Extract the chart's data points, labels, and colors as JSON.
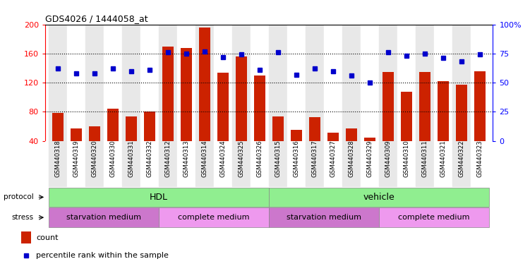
{
  "title": "GDS4026 / 1444058_at",
  "samples": [
    "GSM440318",
    "GSM440319",
    "GSM440320",
    "GSM440330",
    "GSM440331",
    "GSM440332",
    "GSM440312",
    "GSM440313",
    "GSM440314",
    "GSM440324",
    "GSM440325",
    "GSM440326",
    "GSM440315",
    "GSM440316",
    "GSM440317",
    "GSM440327",
    "GSM440328",
    "GSM440329",
    "GSM440309",
    "GSM440310",
    "GSM440311",
    "GSM440321",
    "GSM440322",
    "GSM440323"
  ],
  "counts": [
    78,
    57,
    60,
    84,
    74,
    80,
    170,
    168,
    196,
    134,
    156,
    130,
    74,
    55,
    73,
    51,
    57,
    45,
    135,
    108,
    135,
    122,
    117,
    136
  ],
  "percentiles": [
    62,
    58,
    58,
    62,
    60,
    61,
    76,
    75,
    77,
    72,
    74,
    61,
    76,
    57,
    62,
    60,
    56,
    50,
    76,
    73,
    75,
    71,
    68,
    74
  ],
  "protocol_groups": [
    {
      "label": "HDL",
      "start": 0,
      "end": 11,
      "color": "#90EE90"
    },
    {
      "label": "vehicle",
      "start": 12,
      "end": 23,
      "color": "#90EE90"
    }
  ],
  "stress_groups": [
    {
      "label": "starvation medium",
      "start": 0,
      "end": 5,
      "color": "#CC77CC"
    },
    {
      "label": "complete medium",
      "start": 6,
      "end": 11,
      "color": "#EE99EE"
    },
    {
      "label": "starvation medium",
      "start": 12,
      "end": 17,
      "color": "#CC77CC"
    },
    {
      "label": "complete medium",
      "start": 18,
      "end": 23,
      "color": "#EE99EE"
    }
  ],
  "bar_color": "#CC2200",
  "dot_color": "#0000CC",
  "left_ylim": [
    40,
    200
  ],
  "left_yticks": [
    40,
    80,
    120,
    160,
    200
  ],
  "right_ylim": [
    0,
    100
  ],
  "right_yticks": [
    0,
    25,
    50,
    75,
    100
  ],
  "plot_bg": "#FFFFFF",
  "stripe_even": "#E8E8E8",
  "stripe_odd": "#FFFFFF"
}
